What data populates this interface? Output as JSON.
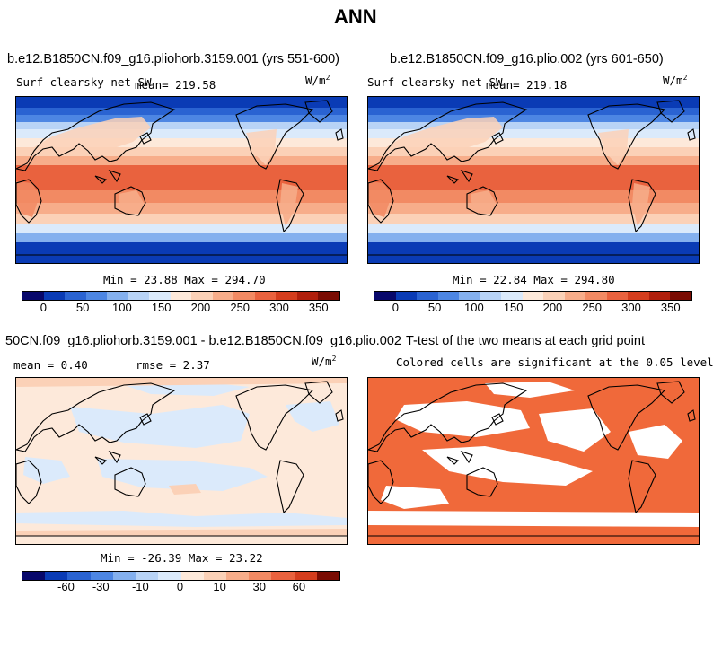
{
  "figure_title": "ANN",
  "units": "W/m",
  "units_exp": "2",
  "colors": {
    "scale": [
      "#08086b",
      "#0a3bb5",
      "#2a63d2",
      "#4d86e3",
      "#84b0ee",
      "#b8d3f6",
      "#dbeafb",
      "#fde9da",
      "#fbd1b7",
      "#f7ad8a",
      "#f28a63",
      "#e9623e",
      "#d43d1d",
      "#b01f0c",
      "#7a0c03"
    ],
    "signif": "#f0693a",
    "nosig": "#ffffff"
  },
  "chart_data": [
    {
      "type": "heatmap",
      "title": "b.e12.B1850CN.f09_g16.pliohorb.3159.001 (yrs 551-600)",
      "variable_label": "Surf clearsky net SW",
      "mean_label": "mean= 219.58",
      "min_max_label": "Min =  23.88 Max = 294.70",
      "mean": 219.58,
      "min": 23.88,
      "max": 294.7,
      "colorbar_levels": [
        25,
        50,
        75,
        100,
        125,
        150,
        175,
        200,
        225,
        250,
        275,
        300,
        325,
        350
      ],
      "colorbar_tick_labels": [
        "0",
        "50",
        "100",
        "150",
        "200",
        "250",
        "300",
        "350"
      ]
    },
    {
      "type": "heatmap",
      "title": "b.e12.B1850CN.f09_g16.plio.002 (yrs 601-650)",
      "variable_label": "Surf clearsky net SW",
      "mean_label": "mean= 219.18",
      "min_max_label": "Min =  22.84 Max = 294.80",
      "mean": 219.18,
      "min": 22.84,
      "max": 294.8,
      "colorbar_levels": [
        25,
        50,
        75,
        100,
        125,
        150,
        175,
        200,
        225,
        250,
        275,
        300,
        325,
        350
      ],
      "colorbar_tick_labels": [
        "0",
        "50",
        "100",
        "150",
        "200",
        "250",
        "300",
        "350"
      ]
    },
    {
      "type": "heatmap",
      "title": "50CN.f09_g16.pliohorb.3159.001 - b.e12.B1850CN.f09_g16.plio.002",
      "mean_label": "mean =   0.40",
      "rmse_label": "rmse =   2.37",
      "min_max_label": "Min = -26.39 Max =  23.22",
      "mean": 0.4,
      "rmse": 2.37,
      "min": -26.39,
      "max": 23.22,
      "colorbar_tick_labels": [
        "-60",
        "-30",
        "-10",
        "0",
        "10",
        "30",
        "60"
      ]
    },
    {
      "type": "heatmap",
      "title": "T-test of the two means at each grid point",
      "subtitle": "Colored cells are significant at the 0.05 level",
      "significance_level": 0.05
    }
  ]
}
